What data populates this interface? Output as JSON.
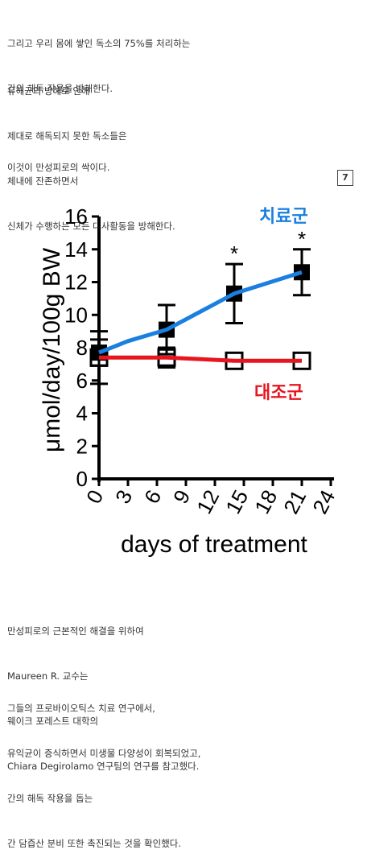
{
  "text": {
    "p1": [
      "그리고 우리 몸에 쌓인 독소의 75%를 처리하는",
      "간의 해독 작용을 방해한다."
    ],
    "p2": [
      "유해균의 방해로 인해",
      "제대로 해독되지 못한 독소들은",
      "체내에 잔존하면서",
      "신체가 수행하는 모든 대사활동을 방해한다."
    ],
    "p3": [
      "이것이 만성피로의 싹이다."
    ],
    "p4": [
      "만성피로의 근본적인 해결을 위하여",
      "Maureen R. 교수는",
      "웨이크 포레스트 대학의",
      "Chiara Degirolamo 연구팀의 연구를 참고했다."
    ],
    "p5": [
      "그들의 프로바이오틱스 치료 연구에서,",
      "유익균이 증식하면서 미생물 다양성이 회복되었고,",
      "간의 해독 작용을 돕는",
      "간 담즙산 분비 또한 촉진되는 것을 확인했다."
    ]
  },
  "badge": "7",
  "chart_data": {
    "type": "line",
    "xlabel": "days of treatment",
    "ylabel": "μmol/day/100g BW",
    "xlim": [
      0,
      24
    ],
    "ylim": [
      0,
      16
    ],
    "x_ticks": [
      "0",
      "3",
      "6",
      "9",
      "12",
      "15",
      "18",
      "21",
      "24"
    ],
    "y_ticks": [
      "0",
      "2",
      "4",
      "6",
      "8",
      "10",
      "12",
      "14",
      "16"
    ],
    "series": [
      {
        "name": "치료군",
        "color": "#1a7fe0",
        "x": [
          0,
          3,
          7,
          14,
          21
        ],
        "y": [
          7.7,
          8.4,
          9.1,
          11.3,
          12.6
        ],
        "err": [
          0.8,
          0.4,
          1.5,
          1.8,
          1.4
        ],
        "significant": [
          false,
          false,
          false,
          true,
          true
        ]
      },
      {
        "name": "대조군",
        "color": "#e8141e",
        "x": [
          0,
          7,
          14,
          21
        ],
        "y": [
          7.4,
          7.4,
          7.2,
          7.2
        ],
        "err": [
          1.6,
          0.6,
          0.4,
          0.4
        ]
      }
    ],
    "annotation": "*",
    "legend": "inline labels",
    "grid": false
  }
}
